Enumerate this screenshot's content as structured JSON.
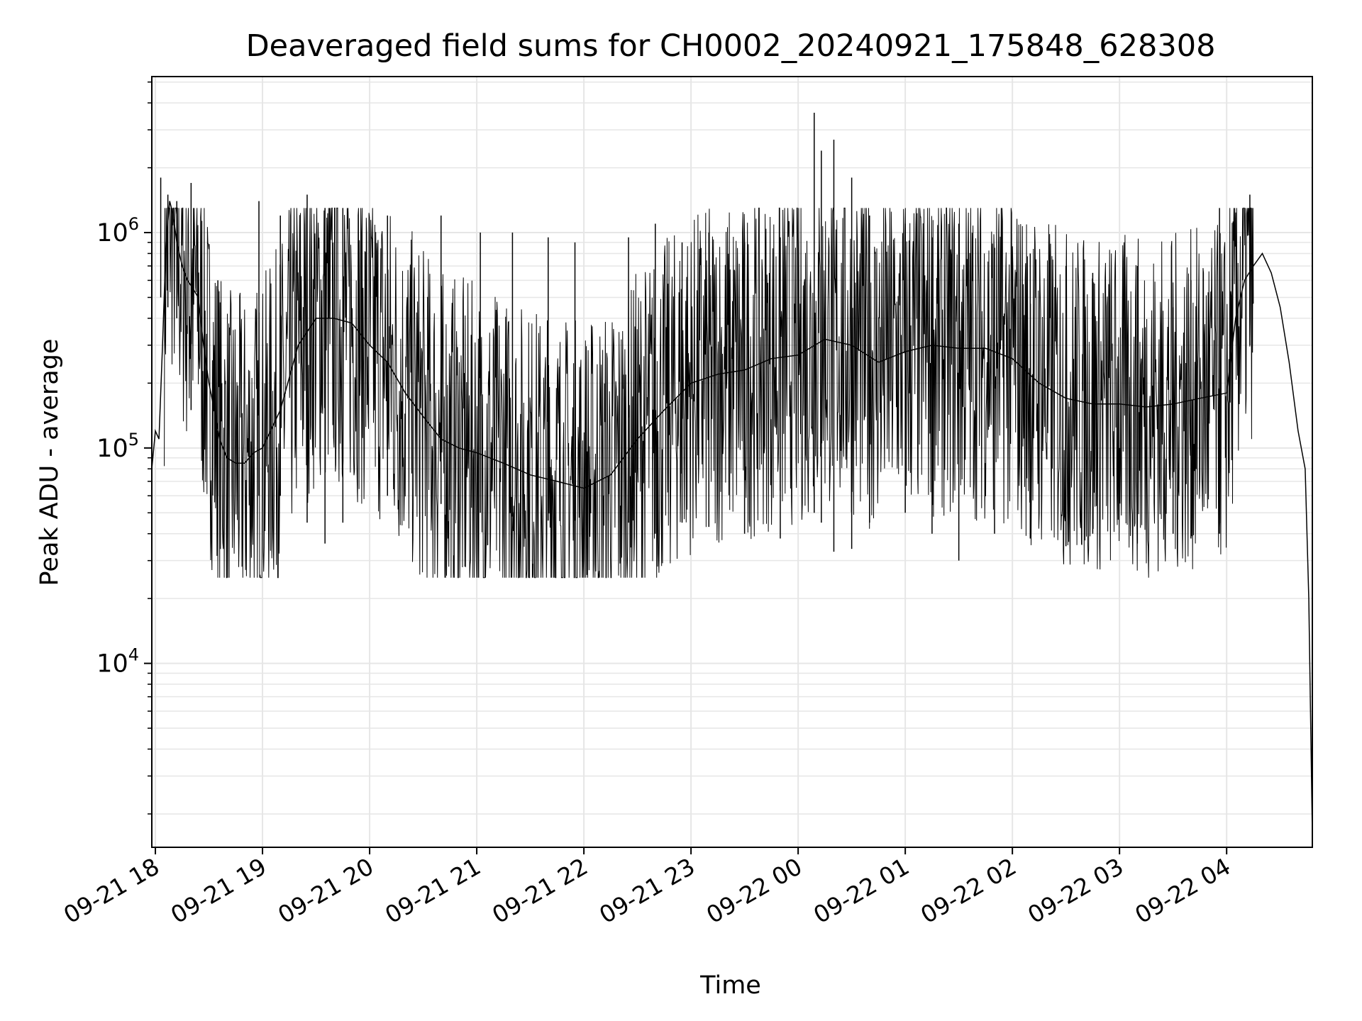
{
  "chart_data": {
    "type": "line",
    "title": "Deaveraged field sums for CH0002_20240921_175848_628308",
    "xlabel": "Time",
    "ylabel": "Peak ADU - average",
    "y_scale": "log",
    "ylim": [
      1400,
      5300000
    ],
    "xlim": [
      "2024-09-21 17:58",
      "2024-09-22 04:48"
    ],
    "grid": true,
    "line_color": "#000000",
    "grid_color": "#e6e6e6",
    "x_ticks": [
      {
        "t": "2024-09-21 18:00",
        "label": "09-21 18"
      },
      {
        "t": "2024-09-21 19:00",
        "label": "09-21 19"
      },
      {
        "t": "2024-09-21 20:00",
        "label": "09-21 20"
      },
      {
        "t": "2024-09-21 21:00",
        "label": "09-21 21"
      },
      {
        "t": "2024-09-21 22:00",
        "label": "09-21 22"
      },
      {
        "t": "2024-09-21 23:00",
        "label": "09-21 23"
      },
      {
        "t": "2024-09-22 00:00",
        "label": "09-22 00"
      },
      {
        "t": "2024-09-22 01:00",
        "label": "09-22 01"
      },
      {
        "t": "2024-09-22 02:00",
        "label": "09-22 02"
      },
      {
        "t": "2024-09-22 03:00",
        "label": "09-22 03"
      },
      {
        "t": "2024-09-22 04:00",
        "label": "09-22 04"
      }
    ],
    "y_major_ticks": [
      {
        "value": 10000,
        "base": "10",
        "exp": "4"
      },
      {
        "value": 100000,
        "base": "10",
        "exp": "5"
      },
      {
        "value": 1000000,
        "base": "10",
        "exp": "6"
      }
    ],
    "series": [
      {
        "x": [
          "2024-09-21 17:58",
          "2024-09-21 18:00",
          "2024-09-21 18:02",
          "2024-09-21 18:04",
          "2024-09-21 18:06",
          "2024-09-21 18:08",
          "2024-09-21 18:10",
          "2024-09-21 18:12",
          "2024-09-21 18:15",
          "2024-09-21 18:18",
          "2024-09-21 18:21",
          "2024-09-21 18:24",
          "2024-09-21 18:27",
          "2024-09-21 18:30",
          "2024-09-21 18:33",
          "2024-09-21 18:36",
          "2024-09-21 18:40",
          "2024-09-21 18:45",
          "2024-09-21 18:50",
          "2024-09-21 18:55",
          "2024-09-21 19:00",
          "2024-09-21 19:10",
          "2024-09-21 19:20",
          "2024-09-21 19:30",
          "2024-09-21 19:40",
          "2024-09-21 19:50",
          "2024-09-21 20:00",
          "2024-09-21 20:10",
          "2024-09-21 20:20",
          "2024-09-21 20:30",
          "2024-09-21 20:40",
          "2024-09-21 20:50",
          "2024-09-21 21:00",
          "2024-09-21 21:15",
          "2024-09-21 21:30",
          "2024-09-21 21:45",
          "2024-09-21 22:00",
          "2024-09-21 22:15",
          "2024-09-21 22:30",
          "2024-09-21 22:45",
          "2024-09-21 23:00",
          "2024-09-21 23:15",
          "2024-09-21 23:30",
          "2024-09-21 23:45",
          "2024-09-22 00:00",
          "2024-09-22 00:15",
          "2024-09-22 00:30",
          "2024-09-22 00:45",
          "2024-09-22 01:00",
          "2024-09-22 01:15",
          "2024-09-22 01:30",
          "2024-09-22 01:45",
          "2024-09-22 02:00",
          "2024-09-22 02:15",
          "2024-09-22 02:30",
          "2024-09-22 02:45",
          "2024-09-22 03:00",
          "2024-09-22 03:15",
          "2024-09-22 03:30",
          "2024-09-22 03:45",
          "2024-09-22 04:00",
          "2024-09-22 04:05",
          "2024-09-22 04:10",
          "2024-09-22 04:15",
          "2024-09-22 04:20",
          "2024-09-22 04:25",
          "2024-09-22 04:30",
          "2024-09-22 04:35",
          "2024-09-22 04:40",
          "2024-09-22 04:44",
          "2024-09-22 04:46",
          "2024-09-22 04:48"
        ],
        "y": [
          80000,
          120000,
          110000,
          300000,
          900000,
          1400000,
          1200000,
          900000,
          700000,
          600000,
          550000,
          500000,
          300000,
          200000,
          150000,
          110000,
          90000,
          85000,
          85000,
          95000,
          100000,
          150000,
          300000,
          400000,
          400000,
          380000,
          300000,
          250000,
          180000,
          140000,
          110000,
          100000,
          95000,
          85000,
          75000,
          70000,
          65000,
          75000,
          110000,
          150000,
          200000,
          220000,
          230000,
          260000,
          270000,
          320000,
          300000,
          250000,
          280000,
          300000,
          290000,
          290000,
          260000,
          200000,
          170000,
          160000,
          160000,
          155000,
          160000,
          170000,
          180000,
          400000,
          600000,
          700000,
          800000,
          650000,
          450000,
          250000,
          120000,
          80000,
          20000,
          1600
        ]
      },
      {
        "name": "",
        "type": "spikes",
        "x": [
          "2024-09-21 18:03",
          "2024-09-21 18:07",
          "2024-09-21 18:12",
          "2024-09-21 18:20",
          "2024-09-21 18:35",
          "2024-09-21 18:58",
          "2024-09-21 19:10",
          "2024-09-21 19:25",
          "2024-09-21 19:35",
          "2024-09-21 19:45",
          "2024-09-21 20:10",
          "2024-09-21 20:40",
          "2024-09-21 21:02",
          "2024-09-21 21:20",
          "2024-09-21 21:40",
          "2024-09-21 21:55",
          "2024-09-21 22:25",
          "2024-09-21 22:40",
          "2024-09-21 22:55",
          "2024-09-21 23:10",
          "2024-09-21 23:30",
          "2024-09-21 23:50",
          "2024-09-22 00:09",
          "2024-09-22 00:13",
          "2024-09-22 00:20",
          "2024-09-22 00:30",
          "2024-09-22 00:40",
          "2024-09-22 01:00",
          "2024-09-22 01:15",
          "2024-09-22 01:30",
          "2024-09-22 01:50",
          "2024-09-22 02:10",
          "2024-09-22 02:30",
          "2024-09-22 02:45",
          "2024-09-22 03:10",
          "2024-09-22 03:30",
          "2024-09-22 03:40",
          "2024-09-22 03:56",
          "2024-09-22 04:13"
        ],
        "y_high": [
          1800000,
          1500000,
          1400000,
          1700000,
          600000,
          1400000,
          1200000,
          1500000,
          1300000,
          1300000,
          1200000,
          1200000,
          1000000,
          1000000,
          950000,
          900000,
          950000,
          1100000,
          900000,
          1000000,
          900000,
          950000,
          3600000,
          2400000,
          2700000,
          1800000,
          1200000,
          1100000,
          950000,
          1100000,
          850000,
          800000,
          700000,
          650000,
          700000,
          450000,
          600000,
          1300000,
          1500000
        ],
        "y_low": [
          500000,
          450000,
          400000,
          150000,
          60000,
          60000,
          60000,
          45000,
          36000,
          45000,
          60000,
          55000,
          50000,
          48000,
          46000,
          46000,
          45000,
          40000,
          45000,
          43000,
          40000,
          38000,
          50000,
          45000,
          33000,
          34000,
          45000,
          50000,
          40000,
          30000,
          40000,
          38000,
          35000,
          40000,
          36000,
          40000,
          38000,
          40000,
          300000
        ]
      }
    ]
  }
}
